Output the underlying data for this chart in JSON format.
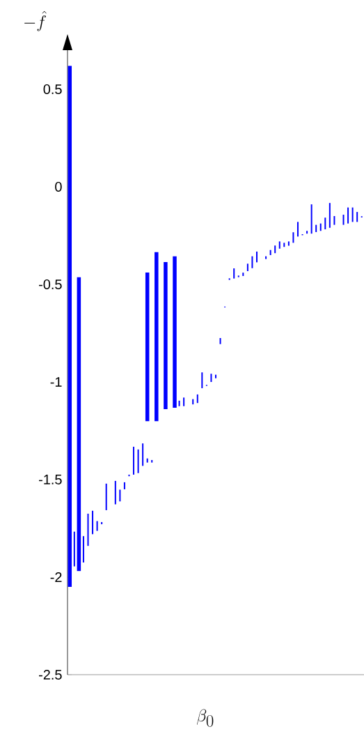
{
  "chart_data": {
    "type": "bar",
    "xlabel": "\\beta_0",
    "ylabel": "-\\hat{f}",
    "categories": [
      null,
      null,
      null,
      null,
      null,
      null,
      null,
      null,
      null,
      null,
      null,
      null,
      null,
      null,
      null,
      null,
      null,
      null,
      null,
      null,
      null,
      null,
      null,
      null,
      null,
      null,
      null,
      null,
      null,
      null,
      null,
      null,
      null,
      null,
      null,
      null,
      null,
      null,
      null,
      null,
      null,
      null,
      null,
      null,
      null,
      null,
      null,
      null,
      null,
      null,
      null,
      null,
      null,
      null,
      null,
      null,
      null,
      null,
      null,
      null,
      null,
      null,
      null,
      null,
      null
    ],
    "series": [
      {
        "color": "#0000ff",
        "base": [
          -2.05,
          null,
          -1.969,
          null,
          null,
          null,
          null,
          null,
          null,
          null,
          null,
          null,
          null,
          null,
          null,
          null,
          null,
          -1.201,
          null,
          -1.201,
          null,
          -1.139,
          null,
          -1.132,
          null,
          null,
          null,
          null,
          null,
          null,
          null,
          null,
          null,
          null,
          null,
          null,
          null,
          null,
          null,
          null,
          null,
          null,
          null,
          null,
          null,
          null,
          null,
          null,
          null,
          null,
          null,
          null,
          null,
          null,
          null,
          null,
          null,
          null,
          null,
          null,
          null,
          null,
          null,
          null,
          null
        ],
        "values": [
          2.67,
          null,
          1.506,
          null,
          null,
          null,
          null,
          null,
          null,
          null,
          null,
          null,
          null,
          null,
          null,
          null,
          null,
          0.762,
          null,
          0.866,
          null,
          0.753,
          null,
          0.776,
          null,
          null,
          null,
          null,
          null,
          null,
          null,
          null,
          null,
          null,
          null,
          null,
          null,
          null,
          null,
          null,
          null,
          null,
          null,
          null,
          null,
          null,
          null,
          null,
          null,
          null,
          null,
          null,
          null,
          null,
          null,
          null,
          null,
          null,
          null,
          null,
          null,
          null,
          null,
          null,
          null
        ]
      },
      {
        "color": "#0000ff",
        "base": [
          null,
          -1.945,
          null,
          -1.925,
          -1.84,
          -1.78,
          -1.763,
          -1.729,
          -1.657,
          null,
          -1.627,
          -1.612,
          -1.55,
          -1.483,
          -1.475,
          -1.467,
          -1.43,
          -1.413,
          -1.413,
          null,
          null,
          null,
          null,
          null,
          -1.124,
          -1.124,
          null,
          -1.115,
          -1.108,
          -1.032,
          -1.02,
          -1.0,
          -0.981,
          -0.806,
          -0.618,
          -0.477,
          -0.47,
          -0.463,
          -0.457,
          -0.432,
          -0.417,
          -0.387,
          null,
          -0.37,
          -0.35,
          -0.34,
          -0.317,
          -0.308,
          -0.302,
          -0.287,
          -0.255,
          -0.248,
          -0.24,
          -0.24,
          -0.232,
          -0.226,
          -0.218,
          -0.21,
          -0.195,
          null,
          -0.195,
          -0.188,
          -0.18,
          -0.18,
          -0.157
        ],
        "values": [
          null,
          0.178,
          null,
          0.135,
          0.165,
          0.12,
          0.05,
          0.011,
          0.136,
          null,
          0.12,
          0.06,
          0.036,
          0.008,
          0.143,
          0.121,
          0.115,
          0.021,
          0.013,
          null,
          null,
          null,
          null,
          null,
          0.028,
          0.044,
          null,
          0.027,
          0.044,
          0.081,
          0.005,
          0.042,
          0.018,
          0.031,
          0.004,
          0.008,
          0.052,
          0.008,
          0.017,
          0.038,
          0.061,
          0.055,
          null,
          0.014,
          0.026,
          0.039,
          0.037,
          0.021,
          0.022,
          0.054,
          0.075,
          0.005,
          0.014,
          0.15,
          0.037,
          0.038,
          0.06,
          0.127,
          0.045,
          null,
          0.052,
          0.082,
          0.074,
          0.051,
          0.006
        ]
      }
    ],
    "ylim": [
      -2.5,
      0.7
    ],
    "yticks": [
      -2.5,
      -2,
      -1.5,
      -1,
      -0.5,
      0,
      0.5
    ]
  }
}
